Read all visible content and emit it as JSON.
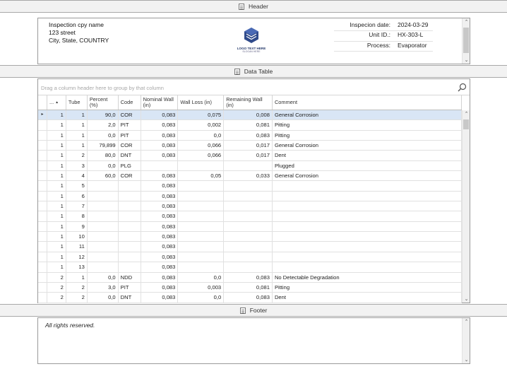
{
  "sections": {
    "header_label": "Header",
    "table_label": "Data Table",
    "footer_label": "Footer"
  },
  "header": {
    "company_name": "Inspection cpy name",
    "street": "123 street",
    "city_line": "City, State, COUNTRY",
    "logo_text": "LOGO TEXT HERE",
    "logo_subtext": "SLOGAN HERE",
    "inspection_date_label": "Inspecion date:",
    "inspection_date": "2024-03-29",
    "unit_id_label": "Unit ID.:",
    "unit_id": "HX-303-L",
    "process_label": "Process:",
    "process": "Evaporator"
  },
  "grid": {
    "group_placeholder": "Drag a column header here to group by that column",
    "columns": [
      "...",
      "Tube",
      "Percent (%)",
      "Code",
      "Nominal Wall (in)",
      "Wall Loss (in)",
      "Remaining Wall (in)",
      "Comment"
    ],
    "rows": [
      [
        "1",
        "1",
        "90,0",
        "COR",
        "0,083",
        "0,075",
        "0,008",
        "General Corrosion"
      ],
      [
        "1",
        "1",
        "2,0",
        "PIT",
        "0,083",
        "0,002",
        "0,081",
        "Pitting"
      ],
      [
        "1",
        "1",
        "0,0",
        "PIT",
        "0,083",
        "0,0",
        "0,083",
        "Pitting"
      ],
      [
        "1",
        "1",
        "79,899",
        "COR",
        "0,083",
        "0,066",
        "0,017",
        "General Corrosion"
      ],
      [
        "1",
        "2",
        "80,0",
        "DNT",
        "0,083",
        "0,066",
        "0,017",
        "Dent"
      ],
      [
        "1",
        "3",
        "0,0",
        "PLG",
        "",
        "",
        "",
        "Plugged"
      ],
      [
        "1",
        "4",
        "60,0",
        "COR",
        "0,083",
        "0,05",
        "0,033",
        "General Corrosion"
      ],
      [
        "1",
        "5",
        "",
        "",
        "0,083",
        "",
        "",
        ""
      ],
      [
        "1",
        "6",
        "",
        "",
        "0,083",
        "",
        "",
        ""
      ],
      [
        "1",
        "7",
        "",
        "",
        "0,083",
        "",
        "",
        ""
      ],
      [
        "1",
        "8",
        "",
        "",
        "0,083",
        "",
        "",
        ""
      ],
      [
        "1",
        "9",
        "",
        "",
        "0,083",
        "",
        "",
        ""
      ],
      [
        "1",
        "10",
        "",
        "",
        "0,083",
        "",
        "",
        ""
      ],
      [
        "1",
        "11",
        "",
        "",
        "0,083",
        "",
        "",
        ""
      ],
      [
        "1",
        "12",
        "",
        "",
        "0,083",
        "",
        "",
        ""
      ],
      [
        "1",
        "13",
        "",
        "",
        "0,083",
        "",
        "",
        ""
      ],
      [
        "2",
        "1",
        "0,0",
        "NDD",
        "0,083",
        "0,0",
        "0,083",
        "No Detectable Degradation"
      ],
      [
        "2",
        "2",
        "3,0",
        "PIT",
        "0,083",
        "0,003",
        "0,081",
        "Pitting"
      ],
      [
        "2",
        "2",
        "0,0",
        "DNT",
        "0,083",
        "0,0",
        "0,083",
        "Dent"
      ]
    ]
  },
  "footer": {
    "text": "All rights reserved."
  },
  "colors": {
    "focused_row": "#d9e6f5",
    "logo_blue": "#263a6b"
  }
}
